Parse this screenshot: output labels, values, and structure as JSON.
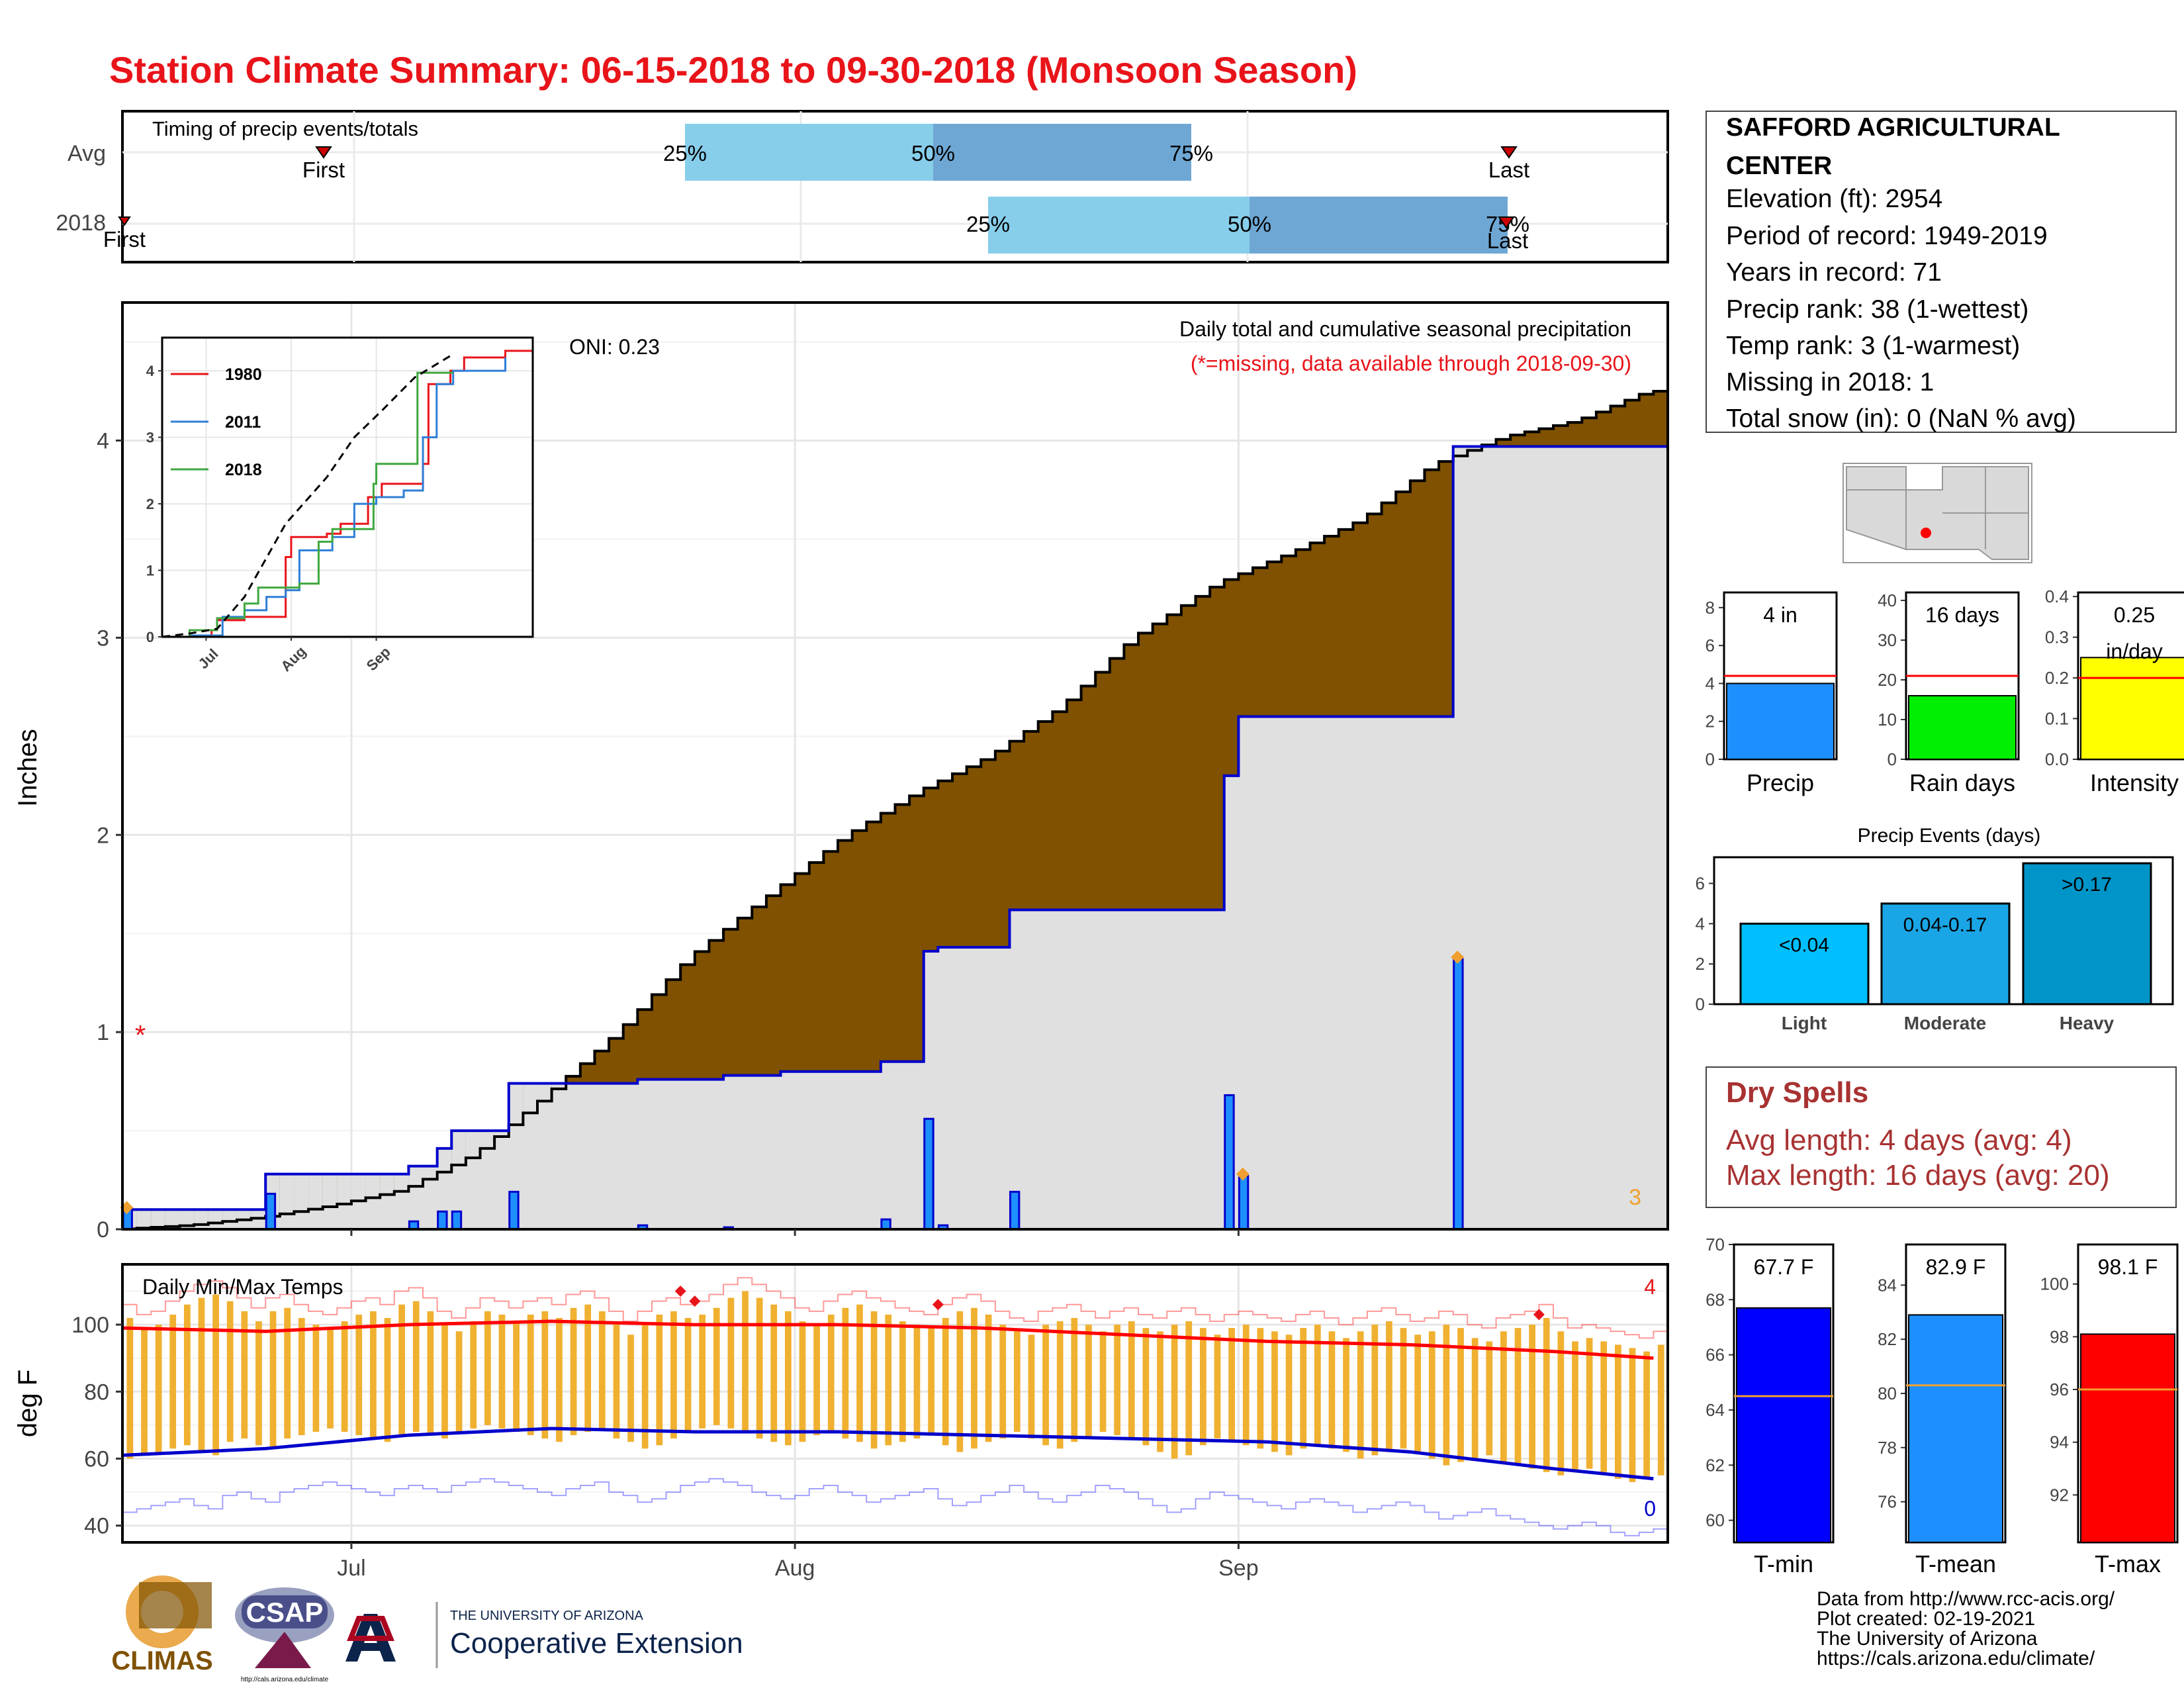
{
  "title": "Station Climate Summary: 06-15-2018 to 09-30-2018 (Monsoon Season)",
  "colors": {
    "title": "#e8141a",
    "brown": "#7f5100",
    "green": "#0a7d0a",
    "bar_blue": "#1e8fff",
    "fill_grey": "#e0e0e0",
    "cum_line": "#0000cc",
    "light_blue": "#87ceeb",
    "mid_blue": "#6fa8d6",
    "tmax_red": "#ff0000",
    "tmin_blue": "#0000cc",
    "orange": "#f0b030",
    "dry_text": "#a83232"
  },
  "timing_panel": {
    "title": "Timing of precip events/totals",
    "row_labels": [
      "Avg",
      "2018"
    ],
    "avg": {
      "first_label": "First",
      "last_label": "Last",
      "p25": "25%",
      "p50": "50%",
      "p75": "75%"
    },
    "y2018": {
      "first_label": "First",
      "last_label": "Last",
      "p25": "25%",
      "p50": "50%",
      "p75": "75%"
    }
  },
  "main_panel": {
    "ylabel": "Inches",
    "subtitle": "Daily total and cumulative seasonal precipitation",
    "missing_note": "(*=missing, data available through 2018-09-30)",
    "oni": "ONI: 0.23",
    "corner_count": "3",
    "y_ticks": [
      "0",
      "1",
      "2",
      "3",
      "4"
    ]
  },
  "inset": {
    "y_ticks": [
      "0",
      "1",
      "2",
      "3",
      "4"
    ],
    "x_ticks": [
      "Jul",
      "Aug",
      "Sep"
    ],
    "legend": [
      "1980",
      "2011",
      "2018"
    ]
  },
  "temp_panel": {
    "title": "Daily Min/Max Temps",
    "ylabel": "deg F",
    "y_ticks": [
      "40",
      "60",
      "80",
      "100"
    ],
    "x_ticks": [
      "Jul",
      "Aug",
      "Sep"
    ],
    "count_max": "4",
    "count_min": "0"
  },
  "station_info": {
    "name_line1": "SAFFORD AGRICULTURAL",
    "name_line2": "CENTER",
    "lines": [
      "Elevation (ft): 2954",
      "Period of record: 1949-2019",
      "Years in record: 71",
      "Precip rank: 38 (1-wettest)",
      "Temp rank: 3 (1-warmest)",
      "Missing in 2018: 1",
      "Total snow (in): 0 (NaN % avg)"
    ]
  },
  "summary_bars": [
    {
      "label": "Precip",
      "value_text": "4 in",
      "value": 4.0,
      "avg": 4.4,
      "ymax": 8.8,
      "ticks": [
        "0",
        "2",
        "4",
        "6",
        "8"
      ],
      "color": "#1e8fff"
    },
    {
      "label": "Rain days",
      "value_text": "16 days",
      "value": 16,
      "avg": 21,
      "ymax": 42,
      "ticks": [
        "0",
        "10",
        "20",
        "30",
        "40"
      ],
      "color": "#00ee00"
    },
    {
      "label": "Intensity",
      "value_text": "0.25\nin/day",
      "value": 0.25,
      "avg": 0.2,
      "ymax": 0.41,
      "ticks": [
        "0.0",
        "0.1",
        "0.2",
        "0.3",
        "0.4"
      ],
      "color": "#ffff00"
    }
  ],
  "precip_events": {
    "title": "Precip Events (days)",
    "ticks": [
      "0",
      "2",
      "4",
      "6"
    ],
    "bars": [
      {
        "label": "Light",
        "range": "<0.04",
        "value": 4,
        "color": "#00bfff"
      },
      {
        "label": "Moderate",
        "range": "0.04-0.17",
        "value": 5,
        "color": "#1aa6e6"
      },
      {
        "label": "Heavy",
        "range": ">0.17",
        "value": 7,
        "color": "#0095c8"
      }
    ]
  },
  "dry_spells": {
    "title": "Dry Spells",
    "avg": "Avg length: 4 days (avg: 4)",
    "max": "Max length: 16 days (avg: 20)"
  },
  "temp_bars": [
    {
      "label": "T-min",
      "value_text": "67.7 F",
      "value": 67.7,
      "avg": 64.5,
      "ymin": 59.2,
      "ymax": 70,
      "ticks": [
        "60",
        "62",
        "64",
        "66",
        "68",
        "70"
      ],
      "color": "#0000ff"
    },
    {
      "label": "T-mean",
      "value_text": "82.9 F",
      "value": 82.9,
      "avg": 80.3,
      "ymin": 74.5,
      "ymax": 85.5,
      "ticks": [
        "76",
        "78",
        "80",
        "82",
        "84"
      ],
      "color": "#1e8fff"
    },
    {
      "label": "T-max",
      "value_text": "98.1 F",
      "value": 98.1,
      "avg": 96.0,
      "ymin": 90.2,
      "ymax": 101.5,
      "ticks": [
        "92",
        "94",
        "96",
        "98",
        "100"
      ],
      "color": "#ff0000"
    }
  ],
  "footer": {
    "lines": [
      "Data from http://www.rcc-acis.org/",
      "Plot created: 02-19-2021",
      "The University of Arizona",
      "https://cals.arizona.edu/climate/"
    ],
    "logos": {
      "climas": "CLIMAS",
      "csap": "CSAP",
      "csap_url": "http://cals.arizona.edu/climate",
      "ua_small": "THE UNIVERSITY OF ARIZONA",
      "ua_big": "Cooperative Extension"
    }
  },
  "chart_data": {
    "type": "area",
    "start_date": "2018-06-15",
    "x_ticks": [
      "Jul",
      "Aug",
      "Sep"
    ],
    "ylabel": "Inches",
    "ylim": [
      0,
      4.7
    ],
    "daily_precip_2018": [
      {
        "date": "2018-06-15",
        "value": 0.1
      },
      {
        "date": "2018-06-25",
        "value": 0.18
      },
      {
        "date": "2018-07-05",
        "value": 0.04
      },
      {
        "date": "2018-07-07",
        "value": 0.09
      },
      {
        "date": "2018-07-08",
        "value": 0.09
      },
      {
        "date": "2018-07-12",
        "value": 0.19
      },
      {
        "date": "2018-07-21",
        "value": 0.02
      },
      {
        "date": "2018-07-27",
        "value": 0.01
      },
      {
        "date": "2018-08-07",
        "value": 0.05
      },
      {
        "date": "2018-08-10",
        "value": 0.56
      },
      {
        "date": "2018-08-11",
        "value": 0.02
      },
      {
        "date": "2018-08-16",
        "value": 0.19
      },
      {
        "date": "2018-08-31",
        "value": 0.68
      },
      {
        "date": "2018-09-01",
        "value": 0.27
      },
      {
        "date": "2018-09-16",
        "value": 1.37
      }
    ],
    "cumulative_2018_steps": [
      {
        "date": "2018-06-15",
        "value": 0.1
      },
      {
        "date": "2018-06-25",
        "value": 0.28
      },
      {
        "date": "2018-07-05",
        "value": 0.32
      },
      {
        "date": "2018-07-07",
        "value": 0.41
      },
      {
        "date": "2018-07-08",
        "value": 0.5
      },
      {
        "date": "2018-07-12",
        "value": 0.74
      },
      {
        "date": "2018-07-13",
        "value": 0.74
      },
      {
        "date": "2018-07-21",
        "value": 0.76
      },
      {
        "date": "2018-07-27",
        "value": 0.78
      },
      {
        "date": "2018-07-31",
        "value": 0.8
      },
      {
        "date": "2018-08-07",
        "value": 0.85
      },
      {
        "date": "2018-08-10",
        "value": 1.41
      },
      {
        "date": "2018-08-11",
        "value": 1.43
      },
      {
        "date": "2018-08-16",
        "value": 1.62
      },
      {
        "date": "2018-08-31",
        "value": 2.3
      },
      {
        "date": "2018-09-01",
        "value": 2.6
      },
      {
        "date": "2018-09-16",
        "value": 3.97
      },
      {
        "date": "2018-09-30",
        "value": 3.97
      }
    ],
    "average_cumulative": [
      {
        "date": "2018-06-15",
        "value": 0.0
      },
      {
        "date": "2018-06-20",
        "value": 0.02
      },
      {
        "date": "2018-06-25",
        "value": 0.06
      },
      {
        "date": "2018-06-30",
        "value": 0.12
      },
      {
        "date": "2018-07-05",
        "value": 0.2
      },
      {
        "date": "2018-07-10",
        "value": 0.38
      },
      {
        "date": "2018-07-15",
        "value": 0.68
      },
      {
        "date": "2018-07-20",
        "value": 1.0
      },
      {
        "date": "2018-07-25",
        "value": 1.38
      },
      {
        "date": "2018-07-31",
        "value": 1.72
      },
      {
        "date": "2018-08-05",
        "value": 2.0
      },
      {
        "date": "2018-08-10",
        "value": 2.22
      },
      {
        "date": "2018-08-15",
        "value": 2.4
      },
      {
        "date": "2018-08-20",
        "value": 2.65
      },
      {
        "date": "2018-08-25",
        "value": 3.0
      },
      {
        "date": "2018-08-31",
        "value": 3.28
      },
      {
        "date": "2018-09-05",
        "value": 3.43
      },
      {
        "date": "2018-09-10",
        "value": 3.6
      },
      {
        "date": "2018-09-15",
        "value": 3.88
      },
      {
        "date": "2018-09-20",
        "value": 4.02
      },
      {
        "date": "2018-09-25",
        "value": 4.1
      },
      {
        "date": "2018-09-30",
        "value": 4.25
      }
    ],
    "missing_markers": [
      {
        "date": "2018-06-16",
        "value": 1.0
      }
    ],
    "inset_series": [
      {
        "name": "1980",
        "color": "#e8141a",
        "points": [
          [
            0,
            0
          ],
          [
            18,
            0.1
          ],
          [
            20,
            0.25
          ],
          [
            30,
            0.3
          ],
          [
            45,
            1.2
          ],
          [
            47,
            1.5
          ],
          [
            60,
            1.55
          ],
          [
            65,
            1.7
          ],
          [
            75,
            2.1
          ],
          [
            80,
            2.3
          ],
          [
            95,
            2.6
          ],
          [
            97,
            3.8
          ],
          [
            105,
            4.0
          ],
          [
            110,
            4.2
          ],
          [
            125,
            4.3
          ],
          [
            135,
            4.5
          ]
        ]
      },
      {
        "name": "2011",
        "color": "#2f7fd6",
        "points": [
          [
            0,
            0
          ],
          [
            10,
            0.02
          ],
          [
            22,
            0.3
          ],
          [
            30,
            0.4
          ],
          [
            38,
            0.6
          ],
          [
            45,
            0.7
          ],
          [
            50,
            1.3
          ],
          [
            62,
            1.5
          ],
          [
            70,
            2.0
          ],
          [
            78,
            2.1
          ],
          [
            88,
            2.2
          ],
          [
            95,
            3.0
          ],
          [
            100,
            3.8
          ],
          [
            106,
            4.0
          ],
          [
            125,
            4.2
          ]
        ]
      },
      {
        "name": "2018",
        "color": "#3fa83f",
        "points": [
          [
            0,
            0
          ],
          [
            10,
            0.1
          ],
          [
            20,
            0.28
          ],
          [
            30,
            0.5
          ],
          [
            35,
            0.74
          ],
          [
            50,
            0.8
          ],
          [
            57,
            1.43
          ],
          [
            62,
            1.62
          ],
          [
            77,
            2.3
          ],
          [
            78,
            2.6
          ],
          [
            93,
            3.97
          ],
          [
            106,
            3.97
          ]
        ]
      }
    ],
    "inset_avg": [
      [
        0,
        0
      ],
      [
        10,
        0.05
      ],
      [
        20,
        0.12
      ],
      [
        30,
        0.6
      ],
      [
        45,
        1.7
      ],
      [
        60,
        2.4
      ],
      [
        70,
        3.0
      ],
      [
        80,
        3.4
      ],
      [
        92,
        3.9
      ],
      [
        100,
        4.1
      ],
      [
        106,
        4.25
      ]
    ]
  },
  "temp_data": {
    "start_date": "2018-06-15",
    "ylim": [
      35,
      118
    ],
    "tmax_daily": [
      102,
      99,
      100,
      103,
      106,
      108,
      109,
      107,
      104,
      101,
      104,
      105,
      102,
      100,
      99,
      101,
      103,
      104,
      102,
      106,
      107,
      104,
      100,
      98,
      101,
      104,
      103,
      101,
      103,
      104,
      102,
      105,
      106,
      104,
      100,
      97,
      100,
      103,
      104,
      102,
      103,
      105,
      108,
      110,
      108,
      106,
      104,
      101,
      100,
      103,
      105,
      106,
      104,
      103,
      101,
      100,
      99,
      102,
      104,
      105,
      103,
      100,
      98,
      97,
      100,
      101,
      102,
      100,
      98,
      100,
      101,
      99,
      98,
      100,
      101,
      99,
      97,
      99,
      100,
      99,
      98,
      97,
      99,
      100,
      98,
      96,
      98,
      100,
      101,
      99,
      97,
      98,
      100,
      99,
      96,
      95,
      98,
      99,
      100,
      102,
      98,
      95,
      96,
      95,
      94,
      93,
      92,
      94
    ],
    "tmin_daily": [
      60,
      61,
      62,
      63,
      64,
      62,
      61,
      65,
      66,
      64,
      63,
      66,
      67,
      68,
      69,
      68,
      67,
      66,
      65,
      67,
      68,
      67,
      66,
      68,
      69,
      70,
      69,
      68,
      67,
      66,
      65,
      67,
      68,
      69,
      66,
      65,
      63,
      64,
      66,
      68,
      69,
      70,
      69,
      68,
      66,
      65,
      64,
      65,
      67,
      68,
      66,
      65,
      63,
      64,
      65,
      66,
      67,
      64,
      62,
      63,
      65,
      66,
      68,
      66,
      64,
      63,
      65,
      66,
      68,
      67,
      66,
      64,
      62,
      60,
      61,
      64,
      66,
      65,
      64,
      63,
      62,
      61,
      63,
      64,
      63,
      62,
      60,
      61,
      62,
      63,
      62,
      60,
      58,
      59,
      60,
      61,
      59,
      58,
      57,
      56,
      55,
      56,
      57,
      56,
      54,
      53,
      54,
      55
    ],
    "max_avg": [
      [
        0,
        99
      ],
      [
        10,
        98
      ],
      [
        20,
        100
      ],
      [
        30,
        101
      ],
      [
        40,
        100
      ],
      [
        50,
        100
      ],
      [
        60,
        99
      ],
      [
        70,
        97
      ],
      [
        80,
        95
      ],
      [
        90,
        94
      ],
      [
        100,
        92
      ],
      [
        107,
        90
      ]
    ],
    "min_avg": [
      [
        0,
        61
      ],
      [
        10,
        63
      ],
      [
        20,
        67
      ],
      [
        30,
        69
      ],
      [
        40,
        68
      ],
      [
        50,
        68
      ],
      [
        60,
        67
      ],
      [
        70,
        66
      ],
      [
        80,
        65
      ],
      [
        90,
        62
      ],
      [
        100,
        57
      ],
      [
        107,
        54
      ]
    ],
    "record_markers": [
      [
        39,
        110
      ],
      [
        40,
        107
      ],
      [
        57,
        106
      ],
      [
        99,
        103
      ]
    ]
  }
}
